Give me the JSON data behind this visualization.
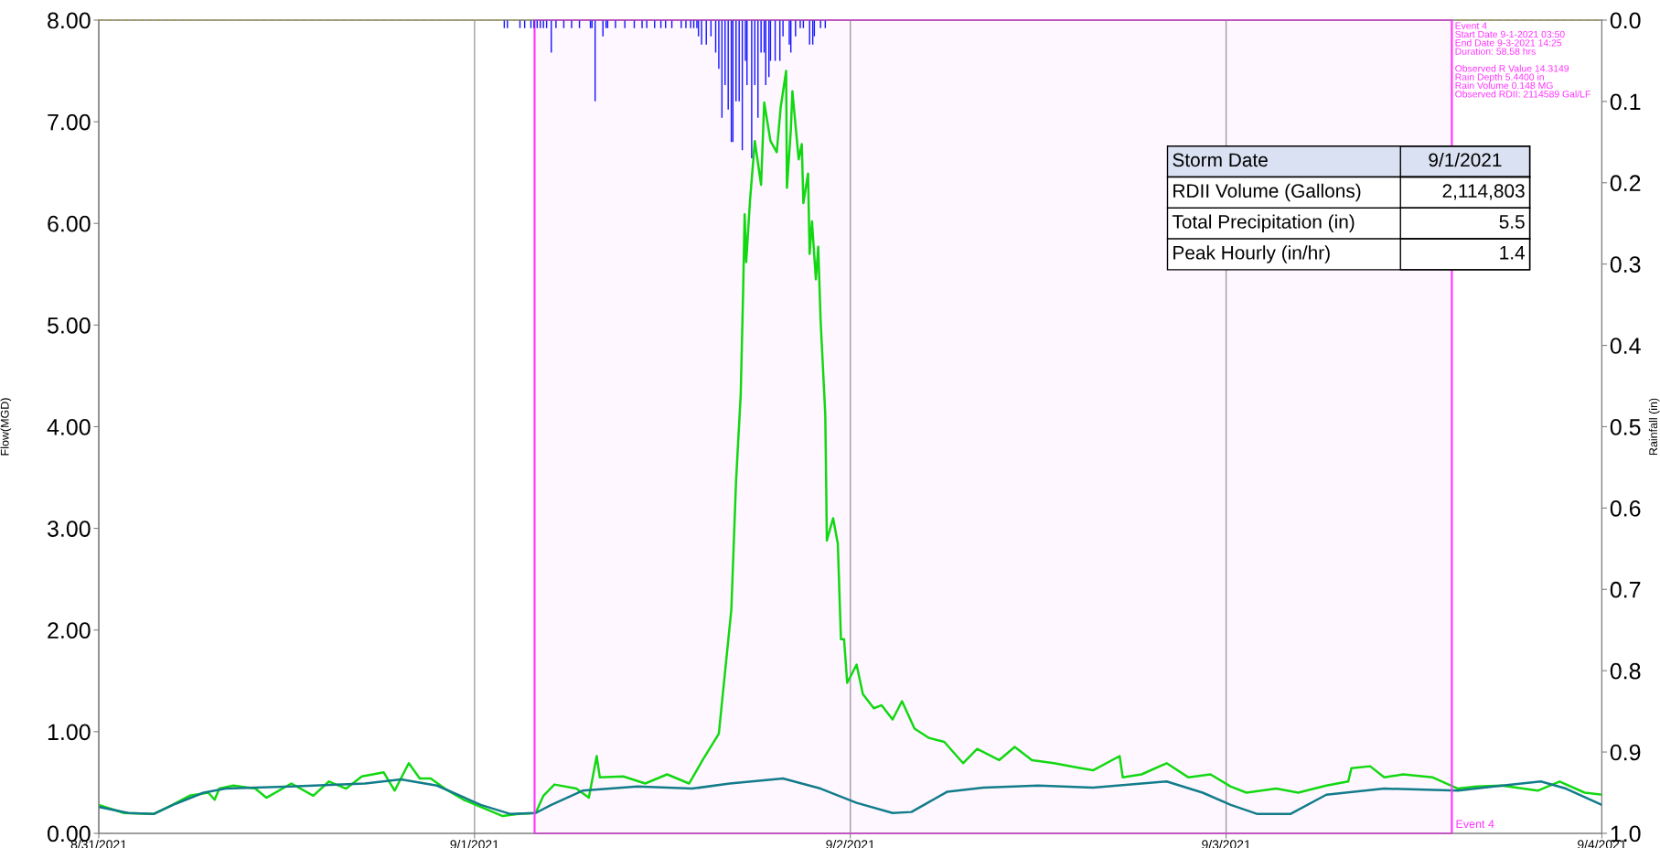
{
  "chart_data": {
    "type": "line",
    "ylabel": "Flow(MGD)",
    "y2label": "Rainfall (in)",
    "xlim": [
      "2021-08-31",
      "2021-09-04"
    ],
    "xticks": [
      {
        "value": "2021-08-31",
        "label": "8/31/2021"
      },
      {
        "value": "2021-09-01",
        "label": "9/1/2021"
      },
      {
        "value": "2021-09-02",
        "label": "9/2/2021"
      },
      {
        "value": "2021-09-03",
        "label": "9/3/2021"
      },
      {
        "value": "2021-09-04",
        "label": "9/4/2021"
      }
    ],
    "ylim": [
      0,
      8
    ],
    "yticks": [
      {
        "value": 0,
        "label": "0.00"
      },
      {
        "value": 1,
        "label": "1.00"
      },
      {
        "value": 2,
        "label": "2.00"
      },
      {
        "value": 3,
        "label": "3.00"
      },
      {
        "value": 4,
        "label": "4.00"
      },
      {
        "value": 5,
        "label": "5.00"
      },
      {
        "value": 6,
        "label": "6.00"
      },
      {
        "value": 7,
        "label": "7.00"
      },
      {
        "value": 8,
        "label": "8.00"
      }
    ],
    "y2lim": [
      1.0,
      0.0
    ],
    "y2ticks": [
      {
        "value": 0,
        "label": "0.0"
      },
      {
        "value": 0.1,
        "label": "0.1"
      },
      {
        "value": 0.2,
        "label": "0.2"
      },
      {
        "value": 0.3,
        "label": "0.3"
      },
      {
        "value": 0.4,
        "label": "0.4"
      },
      {
        "value": 0.5,
        "label": "0.5"
      },
      {
        "value": 0.6,
        "label": "0.6"
      },
      {
        "value": 0.7,
        "label": "0.7"
      },
      {
        "value": 0.8,
        "label": "0.8"
      },
      {
        "value": 0.9,
        "label": "0.9"
      },
      {
        "value": 1.0,
        "label": "1.0"
      }
    ],
    "grid": "x",
    "series": [
      {
        "color": "#12d812",
        "x": [
          "2021-08-31T00:00",
          "2021-08-31T01:36",
          "2021-08-31T03:30",
          "2021-08-31T04:42",
          "2021-08-31T05:48",
          "2021-08-31T07:00",
          "2021-08-31T07:24",
          "2021-08-31T07:42",
          "2021-08-31T08:36",
          "2021-08-31T10:00",
          "2021-08-31T10:42",
          "2021-08-31T12:18",
          "2021-08-31T13:42",
          "2021-08-31T14:42",
          "2021-08-31T15:48",
          "2021-08-31T16:48",
          "2021-08-31T18:12",
          "2021-08-31T18:54",
          "2021-08-31T19:48",
          "2021-08-31T20:30",
          "2021-08-31T21:12",
          "2021-08-31T22:06",
          "2021-08-31T23:18",
          "2021-09-01T00:24",
          "2021-09-01T01:48",
          "2021-09-01T02:48",
          "2021-09-01T03:54",
          "2021-09-01T04:24",
          "2021-09-01T05:06",
          "2021-09-01T06:30",
          "2021-09-01T07:18",
          "2021-09-01T07:48",
          "2021-09-01T08:00",
          "2021-09-01T09:30",
          "2021-09-01T10:54",
          "2021-09-01T12:18",
          "2021-09-01T13:42",
          "2021-09-01T14:36",
          "2021-09-01T15:36",
          "2021-09-01T16:00",
          "2021-09-01T16:24",
          "2021-09-01T16:42",
          "2021-09-01T17:00",
          "2021-09-01T17:09",
          "2021-09-01T17:15",
          "2021-09-01T17:21",
          "2021-09-01T17:36",
          "2021-09-01T17:54",
          "2021-09-01T18:18",
          "2021-09-01T18:30",
          "2021-09-01T18:54",
          "2021-09-01T19:18",
          "2021-09-01T19:33",
          "2021-09-01T19:54",
          "2021-09-01T19:57",
          "2021-09-01T20:12",
          "2021-09-01T20:18",
          "2021-09-01T20:42",
          "2021-09-01T20:54",
          "2021-09-01T21:00",
          "2021-09-01T21:18",
          "2021-09-01T21:24",
          "2021-09-01T21:33",
          "2021-09-01T21:48",
          "2021-09-01T21:57",
          "2021-09-01T22:06",
          "2021-09-01T22:24",
          "2021-09-01T22:27",
          "2021-09-01T22:30",
          "2021-09-01T22:54",
          "2021-09-01T23:12",
          "2021-09-01T23:24",
          "2021-09-01T23:36",
          "2021-09-01T23:48",
          "2021-09-02T00:24",
          "2021-09-02T00:48",
          "2021-09-02T01:30",
          "2021-09-02T02:00",
          "2021-09-02T02:42",
          "2021-09-02T03:18",
          "2021-09-02T04:06",
          "2021-09-02T05:00",
          "2021-09-02T06:00",
          "2021-09-02T07:12",
          "2021-09-02T08:06",
          "2021-09-02T09:30",
          "2021-09-02T10:30",
          "2021-09-02T11:36",
          "2021-09-02T13:00",
          "2021-09-02T14:24",
          "2021-09-02T15:30",
          "2021-09-02T17:12",
          "2021-09-02T17:24",
          "2021-09-02T18:36",
          "2021-09-02T20:12",
          "2021-09-02T21:36",
          "2021-09-02T23:00",
          "2021-09-03T00:18",
          "2021-09-03T01:18",
          "2021-09-03T03:12",
          "2021-09-03T04:36",
          "2021-09-03T06:24",
          "2021-09-03T07:48",
          "2021-09-03T08:00",
          "2021-09-03T09:12",
          "2021-09-03T10:06",
          "2021-09-03T11:18",
          "2021-09-03T13:12",
          "2021-09-03T14:48",
          "2021-09-03T16:00",
          "2021-09-03T17:36",
          "2021-09-03T19:54",
          "2021-09-03T21:18",
          "2021-09-03T22:54",
          "2021-09-04T00:00"
        ],
        "values": [
          0.28,
          0.2,
          0.19,
          0.28,
          0.37,
          0.4,
          0.33,
          0.44,
          0.47,
          0.44,
          0.35,
          0.49,
          0.37,
          0.51,
          0.44,
          0.56,
          0.6,
          0.42,
          0.69,
          0.54,
          0.54,
          0.44,
          0.33,
          0.26,
          0.17,
          0.19,
          0.2,
          0.37,
          0.48,
          0.44,
          0.35,
          0.76,
          0.55,
          0.56,
          0.49,
          0.58,
          0.49,
          0.73,
          0.98,
          1.59,
          2.2,
          3.46,
          4.32,
          5.31,
          6.09,
          5.62,
          6.24,
          6.81,
          6.38,
          7.19,
          6.81,
          6.7,
          7.14,
          7.5,
          6.35,
          6.92,
          7.3,
          6.63,
          6.78,
          6.2,
          6.49,
          5.7,
          6.02,
          5.45,
          5.77,
          5.05,
          4.12,
          3.53,
          2.88,
          3.1,
          2.85,
          1.91,
          1.91,
          1.48,
          1.66,
          1.37,
          1.23,
          1.26,
          1.12,
          1.3,
          1.03,
          0.94,
          0.9,
          0.69,
          0.83,
          0.72,
          0.85,
          0.72,
          0.69,
          0.65,
          0.62,
          0.76,
          0.55,
          0.58,
          0.69,
          0.55,
          0.58,
          0.46,
          0.4,
          0.44,
          0.4,
          0.47,
          0.51,
          0.64,
          0.66,
          0.55,
          0.58,
          0.55,
          0.44,
          0.46,
          0.47,
          0.42,
          0.51,
          0.4,
          0.38
        ]
      },
      {
        "color": "#127c8a",
        "x": [
          "2021-08-31T00:00",
          "2021-08-31T01:54",
          "2021-08-31T03:30",
          "2021-08-31T04:54",
          "2021-08-31T06:42",
          "2021-08-31T08:06",
          "2021-08-31T12:18",
          "2021-08-31T17:00",
          "2021-08-31T19:18",
          "2021-08-31T21:36",
          "2021-09-01T00:24",
          "2021-09-01T02:18",
          "2021-09-01T03:54",
          "2021-09-01T04:54",
          "2021-09-01T06:54",
          "2021-09-01T10:24",
          "2021-09-01T13:54",
          "2021-09-01T16:18",
          "2021-09-01T19:42",
          "2021-09-01T22:06",
          "2021-09-02T00:24",
          "2021-09-02T02:42",
          "2021-09-02T03:54",
          "2021-09-02T06:12",
          "2021-09-02T08:30",
          "2021-09-02T12:00",
          "2021-09-02T15:30",
          "2021-09-02T20:12",
          "2021-09-02T22:30",
          "2021-09-03T00:18",
          "2021-09-03T02:00",
          "2021-09-03T04:06",
          "2021-09-03T06:24",
          "2021-09-03T10:06",
          "2021-09-03T14:48",
          "2021-09-03T17:06",
          "2021-09-03T20:06",
          "2021-09-03T21:42",
          "2021-09-04T00:00"
        ],
        "values": [
          0.26,
          0.2,
          0.19,
          0.29,
          0.4,
          0.44,
          0.46,
          0.49,
          0.53,
          0.47,
          0.28,
          0.19,
          0.2,
          0.28,
          0.42,
          0.46,
          0.44,
          0.49,
          0.54,
          0.44,
          0.3,
          0.2,
          0.21,
          0.41,
          0.45,
          0.47,
          0.45,
          0.51,
          0.4,
          0.28,
          0.19,
          0.19,
          0.38,
          0.44,
          0.42,
          0.46,
          0.51,
          0.44,
          0.28
        ]
      },
      {
        "type": "bar",
        "axis": "y2",
        "color": "#1a1aff",
        "x": [
          "2021-09-01T01:54",
          "2021-09-01T02:06",
          "2021-09-01T02:54",
          "2021-09-01T03:12",
          "2021-09-01T03:36",
          "2021-09-01T03:48",
          "2021-09-01T04:00",
          "2021-09-01T04:12",
          "2021-09-01T04:24",
          "2021-09-01T04:36",
          "2021-09-01T04:54",
          "2021-09-01T05:12",
          "2021-09-01T05:42",
          "2021-09-01T06:12",
          "2021-09-01T06:42",
          "2021-09-01T07:24",
          "2021-09-01T07:30",
          "2021-09-01T07:42",
          "2021-09-01T08:12",
          "2021-09-01T08:24",
          "2021-09-01T08:30",
          "2021-09-01T09:00",
          "2021-09-01T09:36",
          "2021-09-01T10:12",
          "2021-09-01T10:42",
          "2021-09-01T11:00",
          "2021-09-01T11:30",
          "2021-09-01T11:54",
          "2021-09-01T12:12",
          "2021-09-01T12:36",
          "2021-09-01T13:12",
          "2021-09-01T13:30",
          "2021-09-01T13:48",
          "2021-09-01T14:00",
          "2021-09-01T14:12",
          "2021-09-01T14:18",
          "2021-09-01T14:30",
          "2021-09-01T14:48",
          "2021-09-01T15:06",
          "2021-09-01T15:24",
          "2021-09-01T15:36",
          "2021-09-01T15:48",
          "2021-09-01T16:00",
          "2021-09-01T16:12",
          "2021-09-01T16:24",
          "2021-09-01T16:30",
          "2021-09-01T16:42",
          "2021-09-01T16:54",
          "2021-09-01T17:06",
          "2021-09-01T17:18",
          "2021-09-01T17:24",
          "2021-09-01T17:42",
          "2021-09-01T17:54",
          "2021-09-01T18:06",
          "2021-09-01T18:18",
          "2021-09-01T18:30",
          "2021-09-01T18:36",
          "2021-09-01T18:48",
          "2021-09-01T18:54",
          "2021-09-01T19:12",
          "2021-09-01T19:30",
          "2021-09-01T19:42",
          "2021-09-01T20:06",
          "2021-09-01T20:12",
          "2021-09-01T20:30",
          "2021-09-01T20:48",
          "2021-09-01T21:00",
          "2021-09-01T21:24",
          "2021-09-01T21:36",
          "2021-09-01T21:42",
          "2021-09-01T22:06",
          "2021-09-01T22:24"
        ],
        "values": [
          0.01,
          0.01,
          0.01,
          0.01,
          0.01,
          0.01,
          0.01,
          0.01,
          0.01,
          0.01,
          0.04,
          0.01,
          0.01,
          0.01,
          0.01,
          0.01,
          0.01,
          0.1,
          0.02,
          0.01,
          0.01,
          0.01,
          0.01,
          0.01,
          0.01,
          0.01,
          0.01,
          0.01,
          0.01,
          0.01,
          0.01,
          0.01,
          0.01,
          0.01,
          0.01,
          0.02,
          0.03,
          0.03,
          0.02,
          0.04,
          0.06,
          0.12,
          0.08,
          0.11,
          0.15,
          0.15,
          0.1,
          0.1,
          0.16,
          0.05,
          0.08,
          0.17,
          0.08,
          0.12,
          0.04,
          0.04,
          0.08,
          0.07,
          0.05,
          0.05,
          0.05,
          0.02,
          0.03,
          0.04,
          0.02,
          0.01,
          0.01,
          0.03,
          0.03,
          0.02,
          0.01,
          0.01
        ]
      }
    ],
    "ref_lines": [
      {
        "axis": "y",
        "value": 8,
        "color": "#ffff00",
        "line_style": "dashed"
      }
    ],
    "bands": [
      {
        "axis": "x",
        "from": "2021-09-01T03:50",
        "to": "2021-09-03T14:25",
        "label": "Event 4",
        "color": "#ff33ff"
      }
    ],
    "annotations": [
      "Event 4\nStart Date 9-1-2021 03:50\nEnd Date 9-3-2021 14:25\nDuration: 58.58 hrs\n\nObserved R Value 14.3149\nRain Depth 5.4400 in\nRain Volume 0.148 MG\nObserved RDII: 2114589 Gal/LF",
      "Storm Date",
      "9/1/2021",
      "RDII Volume (Gallons)",
      "2,114,803",
      "Total Precipitation (in)",
      "5.5",
      "Peak Hourly (in/hr)",
      "1.4"
    ]
  }
}
